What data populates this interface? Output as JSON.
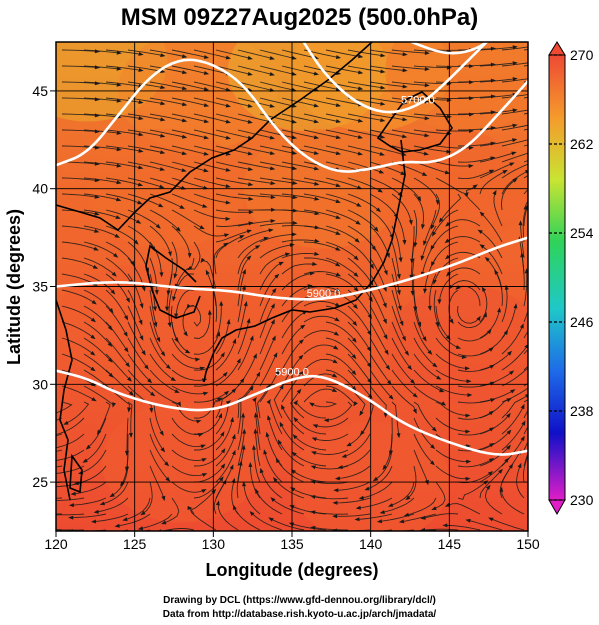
{
  "title": "MSM 09Z27Aug2025 (500.0hPa)",
  "credits": {
    "line1": "Drawing by DCL (https://www.gfd-dennou.org/library/dcl/)",
    "line2": "Data from http://database.rish.kyoto-u.ac.jp/arch/jmadata/"
  },
  "chart_data": {
    "type": "heatmap",
    "title": "MSM 09Z27Aug2025 (500.0hPa)",
    "xlabel": "Longitude (degrees)",
    "ylabel": "Latitude  (degrees)",
    "xlim": [
      120,
      150
    ],
    "ylim": [
      22.5,
      47.5
    ],
    "xticks": [
      "120",
      "125",
      "130",
      "135",
      "140",
      "145",
      "150"
    ],
    "xtick_values": [
      120,
      125,
      130,
      135,
      140,
      145,
      150
    ],
    "yticks": [
      "25",
      "30",
      "35",
      "40",
      "45"
    ],
    "ytick_values": [
      25,
      30,
      35,
      40,
      45
    ],
    "grid": true,
    "colorbar": {
      "labels": [
        "270",
        "262",
        "254",
        "246",
        "238",
        "230"
      ],
      "values": [
        270,
        262,
        254,
        246,
        238,
        230
      ],
      "range": [
        230,
        270
      ],
      "placement": "right"
    },
    "field_samples": [
      {
        "lon": 122,
        "lat": 46.5,
        "value": 261
      },
      {
        "lon": 129,
        "lat": 45,
        "value": 264
      },
      {
        "lon": 136,
        "lat": 46,
        "value": 261
      },
      {
        "lon": 140,
        "lat": 46,
        "value": 262
      },
      {
        "lon": 146,
        "lat": 46,
        "value": 265
      },
      {
        "lon": 127,
        "lat": 40,
        "value": 266
      },
      {
        "lon": 137,
        "lat": 40,
        "value": 265
      },
      {
        "lon": 145,
        "lat": 40,
        "value": 267
      },
      {
        "lon": 125,
        "lat": 33,
        "value": 268
      },
      {
        "lon": 135,
        "lat": 32,
        "value": 268
      },
      {
        "lon": 146,
        "lat": 32,
        "value": 269
      },
      {
        "lon": 128,
        "lat": 26,
        "value": 268
      },
      {
        "lon": 140,
        "lat": 25,
        "value": 268
      }
    ],
    "contours": [
      {
        "label": "5900.0",
        "points": [
          [
            120,
            35.0
          ],
          [
            124,
            35.3
          ],
          [
            128,
            34.9
          ],
          [
            131,
            34.8
          ],
          [
            134,
            34.4
          ],
          [
            137,
            34.3
          ],
          [
            141,
            35.0
          ],
          [
            145,
            36.0
          ],
          [
            148,
            37.0
          ],
          [
            150,
            37.5
          ]
        ]
      },
      {
        "label": "5900.0",
        "points": [
          [
            120,
            30.7
          ],
          [
            122,
            30.3
          ],
          [
            124,
            29.5
          ],
          [
            127,
            28.8
          ],
          [
            130,
            28.6
          ],
          [
            133,
            29.6
          ],
          [
            135,
            30.3
          ],
          [
            137,
            30.5
          ],
          [
            140,
            29.2
          ],
          [
            142,
            28.0
          ],
          [
            145,
            27.0
          ],
          [
            148,
            26.3
          ],
          [
            150,
            26.6
          ]
        ]
      },
      {
        "label": "",
        "points": [
          [
            120,
            41.2
          ],
          [
            122,
            41.8
          ],
          [
            124,
            43.8
          ],
          [
            126,
            45.8
          ],
          [
            128,
            46.7
          ],
          [
            130,
            46.4
          ],
          [
            132,
            45.3
          ],
          [
            134,
            43.0
          ],
          [
            136,
            41.5
          ],
          [
            138,
            40.8
          ],
          [
            140,
            41.0
          ],
          [
            142,
            41.4
          ],
          [
            144,
            41.3
          ],
          [
            146,
            42.0
          ],
          [
            148,
            43.7
          ],
          [
            150,
            45.5
          ]
        ]
      },
      {
        "label": "5700.0",
        "points": [
          [
            135.5,
            47.8
          ],
          [
            137,
            45.9
          ],
          [
            139,
            44.4
          ],
          [
            141,
            43.8
          ],
          [
            143,
            44.2
          ],
          [
            144.5,
            45.2
          ],
          [
            146.5,
            46.8
          ],
          [
            148,
            48
          ]
        ]
      },
      {
        "label": "",
        "points": [
          [
            141.5,
            48
          ],
          [
            142.5,
            47.5
          ],
          [
            145,
            46.8
          ],
          [
            147,
            47.2
          ],
          [
            148,
            48
          ]
        ]
      }
    ]
  }
}
